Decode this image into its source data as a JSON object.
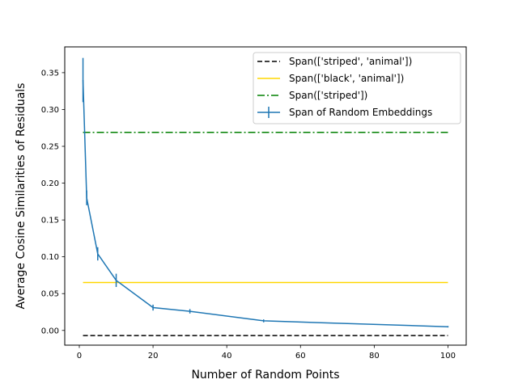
{
  "chart_data": {
    "type": "line",
    "xlabel": "Number of Random Points",
    "ylabel": "Average Cosine Similarities of Residuals",
    "xlim": [
      -3.95,
      104.95
    ],
    "ylim": [
      -0.02,
      0.385
    ],
    "xticks": [
      0,
      20,
      40,
      60,
      80,
      100
    ],
    "yticks": [
      0.0,
      0.05,
      0.1,
      0.15,
      0.2,
      0.25,
      0.3,
      0.35
    ],
    "xtick_labels": [
      "0",
      "20",
      "40",
      "60",
      "80",
      "100"
    ],
    "ytick_labels": [
      "0.00",
      "0.05",
      "0.10",
      "0.15",
      "0.20",
      "0.25",
      "0.30",
      "0.35"
    ],
    "grid": false,
    "legend_placement": "top-right",
    "series": [
      {
        "name": "Span(['striped', 'animal'])",
        "kind": "hline",
        "style": "dashed",
        "color": "#000000",
        "x": [
          1,
          100
        ],
        "y": [
          -0.007,
          -0.007
        ]
      },
      {
        "name": "Span(['black', 'animal'])",
        "kind": "hline",
        "style": "solid",
        "color": "#ffd700",
        "x": [
          1,
          100
        ],
        "y": [
          0.065,
          0.065
        ]
      },
      {
        "name": "Span(['striped'])",
        "kind": "hline",
        "style": "dashdot",
        "color": "#008000",
        "x": [
          1,
          100
        ],
        "y": [
          0.269,
          0.269
        ]
      },
      {
        "name": "Span of Random Embeddings",
        "kind": "errorbar",
        "style": "solid",
        "color": "#1f77b4",
        "x": [
          1,
          2,
          5,
          10,
          20,
          30,
          50,
          100
        ],
        "y": [
          0.34,
          0.18,
          0.104,
          0.068,
          0.031,
          0.026,
          0.013,
          0.005
        ],
        "err": [
          0.03,
          0.01,
          0.009,
          0.009,
          0.004,
          0.003,
          0.002,
          0.001
        ]
      }
    ]
  }
}
